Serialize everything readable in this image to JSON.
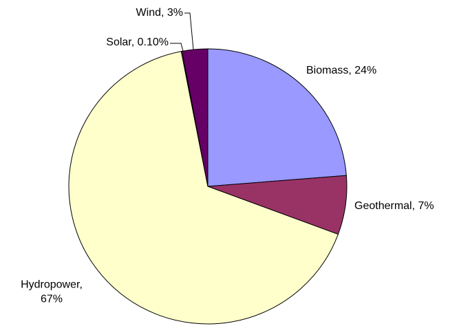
{
  "chart_data": {
    "type": "pie",
    "categories": [
      "Biomass",
      "Geothermal",
      "Hydropower",
      "Solar",
      "Wind"
    ],
    "values": [
      24,
      7,
      67,
      0.1,
      3
    ],
    "value_labels": [
      "Biomass, 24%",
      "Geothermal, 7%",
      "Hydropower, 67%",
      "Solar, 0.10%",
      "Wind, 3%"
    ],
    "colors": [
      "#9999ff",
      "#993366",
      "#ffffcc",
      "#ccffff",
      "#660066"
    ]
  }
}
